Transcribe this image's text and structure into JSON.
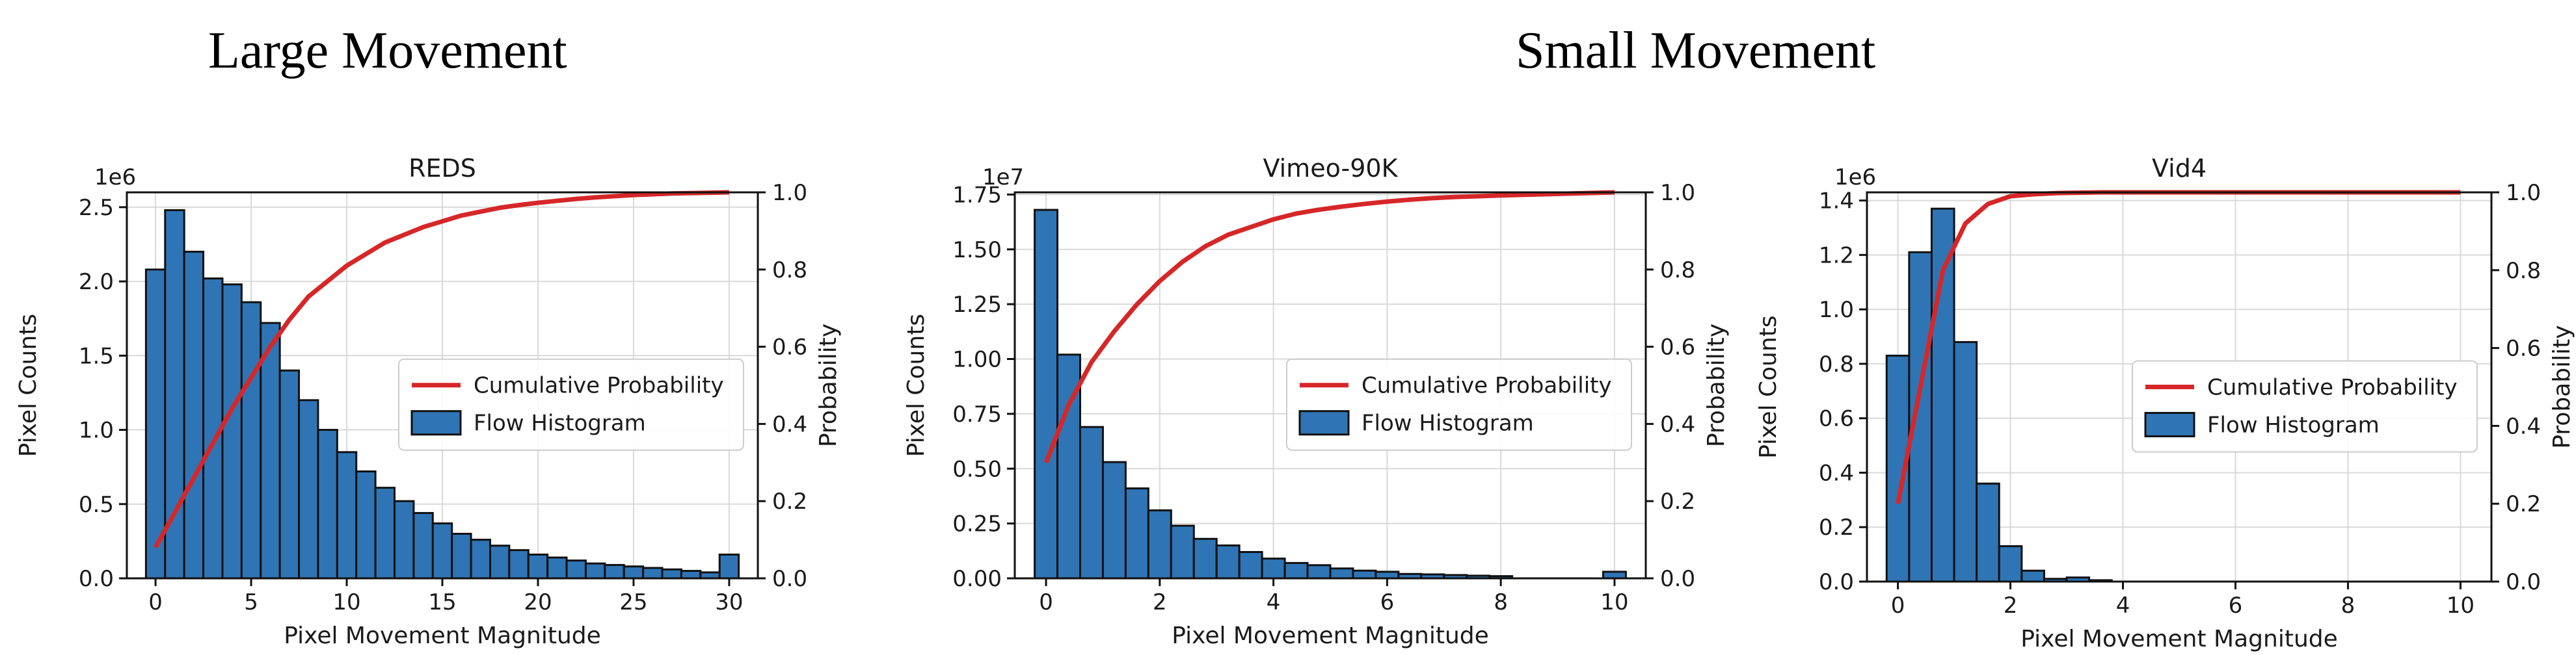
{
  "headings": {
    "left": "Large Movement",
    "right": "Small Movement"
  },
  "colors": {
    "bar_fill": "#2f75b5",
    "bar_edge": "#111111",
    "line": "#d62728",
    "grid": "#d9d9d9"
  },
  "chart_data": [
    {
      "type": "bar",
      "title": "REDS",
      "xlabel": "Pixel Movement Magnitude",
      "ylabel": "Pixel Counts",
      "y2label": "Probability",
      "y_offset_label": "1e6",
      "xlim": [
        -1.5,
        31.5
      ],
      "ylim": [
        0,
        2.6
      ],
      "y2lim": [
        0,
        1.0
      ],
      "xticks": [
        0,
        5,
        10,
        15,
        20,
        25,
        30
      ],
      "yticks": [
        0.0,
        0.5,
        1.0,
        1.5,
        2.0,
        2.5
      ],
      "y2ticks": [
        0.0,
        0.2,
        0.4,
        0.6,
        0.8,
        1.0
      ],
      "ytick_labels": [
        "0.0",
        "0.5",
        "1.0",
        "1.5",
        "2.0",
        "2.5"
      ],
      "y2tick_labels": [
        "0.0",
        "0.2",
        "0.4",
        "0.6",
        "0.8",
        "1.0"
      ],
      "bin_width": 1.0,
      "bars": {
        "name": "Flow Histogram",
        "x": [
          0,
          1,
          2,
          3,
          4,
          5,
          6,
          7,
          8,
          9,
          10,
          11,
          12,
          13,
          14,
          15,
          16,
          17,
          18,
          19,
          20,
          21,
          22,
          23,
          24,
          25,
          26,
          27,
          28,
          29,
          30
        ],
        "values": [
          2.08,
          2.48,
          2.2,
          2.02,
          1.98,
          1.86,
          1.72,
          1.4,
          1.2,
          1.0,
          0.85,
          0.72,
          0.61,
          0.52,
          0.44,
          0.37,
          0.3,
          0.26,
          0.22,
          0.19,
          0.16,
          0.14,
          0.12,
          0.1,
          0.09,
          0.08,
          0.07,
          0.06,
          0.05,
          0.04,
          0.16
        ]
      },
      "line": {
        "name": "Cumulative Probability",
        "x": [
          0,
          1,
          2,
          3,
          4,
          5,
          6,
          7,
          8,
          9,
          10,
          11,
          12,
          13,
          14,
          15,
          16,
          17,
          18,
          19,
          20,
          21,
          22,
          23,
          24,
          25,
          26,
          27,
          28,
          29,
          30
        ],
        "values": [
          0.08,
          0.17,
          0.26,
          0.35,
          0.44,
          0.52,
          0.6,
          0.67,
          0.73,
          0.77,
          0.81,
          0.84,
          0.87,
          0.89,
          0.91,
          0.925,
          0.94,
          0.95,
          0.96,
          0.967,
          0.973,
          0.978,
          0.983,
          0.987,
          0.99,
          0.993,
          0.995,
          0.997,
          0.998,
          0.999,
          1.0
        ]
      },
      "legend_position": "center-right",
      "grid": true
    },
    {
      "type": "bar",
      "title": "Vimeo-90K",
      "xlabel": "Pixel Movement Magnitude",
      "ylabel": "Pixel Counts",
      "y2label": "Probability",
      "y_offset_label": "1e7",
      "xlim": [
        -0.55,
        10.55
      ],
      "ylim": [
        0,
        1.76
      ],
      "y2lim": [
        0,
        1.0
      ],
      "xticks": [
        0,
        2,
        4,
        6,
        8,
        10
      ],
      "yticks": [
        0.0,
        0.25,
        0.5,
        0.75,
        1.0,
        1.25,
        1.5,
        1.75
      ],
      "y2ticks": [
        0.0,
        0.2,
        0.4,
        0.6,
        0.8,
        1.0
      ],
      "ytick_labels": [
        "0.00",
        "0.25",
        "0.50",
        "0.75",
        "1.00",
        "1.25",
        "1.50",
        "1.75"
      ],
      "y2tick_labels": [
        "0.0",
        "0.2",
        "0.4",
        "0.6",
        "0.8",
        "1.0"
      ],
      "bin_width": 0.4,
      "bars": {
        "name": "Flow Histogram",
        "x": [
          0,
          0.4,
          0.8,
          1.2,
          1.6,
          2.0,
          2.4,
          2.8,
          3.2,
          3.6,
          4.0,
          4.4,
          4.8,
          5.2,
          5.6,
          6.0,
          6.4,
          6.8,
          7.2,
          7.6,
          8.0,
          10.0
        ],
        "values": [
          1.68,
          1.02,
          0.69,
          0.53,
          0.41,
          0.31,
          0.24,
          0.18,
          0.15,
          0.12,
          0.09,
          0.07,
          0.06,
          0.045,
          0.035,
          0.03,
          0.02,
          0.018,
          0.015,
          0.012,
          0.01,
          0.03
        ]
      },
      "line": {
        "name": "Cumulative Probability",
        "x": [
          0,
          0.4,
          0.8,
          1.2,
          1.6,
          2.0,
          2.4,
          2.8,
          3.2,
          3.6,
          4.0,
          4.4,
          4.8,
          5.2,
          5.6,
          6.0,
          6.4,
          6.8,
          7.2,
          7.6,
          8.0,
          9.0,
          10.0
        ],
        "values": [
          0.3,
          0.45,
          0.56,
          0.64,
          0.71,
          0.77,
          0.82,
          0.86,
          0.89,
          0.91,
          0.93,
          0.945,
          0.955,
          0.963,
          0.97,
          0.976,
          0.981,
          0.985,
          0.988,
          0.99,
          0.992,
          0.996,
          1.0
        ]
      },
      "legend_position": "center-right",
      "grid": true
    },
    {
      "type": "bar",
      "title": "Vid4",
      "xlabel": "Pixel Movement Magnitude",
      "ylabel": "Pixel Counts",
      "y2label": "Probability",
      "y_offset_label": "1e6",
      "xlim": [
        -0.55,
        10.55
      ],
      "ylim": [
        0,
        1.43
      ],
      "y2lim": [
        0,
        1.0
      ],
      "xticks": [
        0,
        2,
        4,
        6,
        8,
        10
      ],
      "yticks": [
        0.0,
        0.2,
        0.4,
        0.6,
        0.8,
        1.0,
        1.2,
        1.4
      ],
      "y2ticks": [
        0.0,
        0.2,
        0.4,
        0.6,
        0.8,
        1.0
      ],
      "ytick_labels": [
        "0.0",
        "0.2",
        "0.4",
        "0.6",
        "0.8",
        "1.0",
        "1.2",
        "1.4"
      ],
      "y2tick_labels": [
        "0.0",
        "0.2",
        "0.4",
        "0.6",
        "0.8",
        "1.0"
      ],
      "bin_width": 0.4,
      "bars": {
        "name": "Flow Histogram",
        "x": [
          0,
          0.4,
          0.8,
          1.2,
          1.6,
          2.0,
          2.4,
          2.8,
          3.2,
          3.6
        ],
        "values": [
          0.83,
          1.21,
          1.37,
          0.88,
          0.36,
          0.13,
          0.04,
          0.01,
          0.015,
          0.005
        ]
      },
      "line": {
        "name": "Cumulative Probability",
        "x": [
          0,
          0.4,
          0.8,
          1.2,
          1.6,
          2.0,
          2.4,
          2.8,
          3.2,
          3.6,
          4.0,
          6.0,
          8.0,
          10.0
        ],
        "values": [
          0.2,
          0.5,
          0.8,
          0.92,
          0.97,
          0.99,
          0.995,
          0.998,
          0.999,
          1.0,
          1.0,
          1.0,
          1.0,
          1.0
        ]
      },
      "legend_position": "center-right",
      "grid": true
    }
  ]
}
